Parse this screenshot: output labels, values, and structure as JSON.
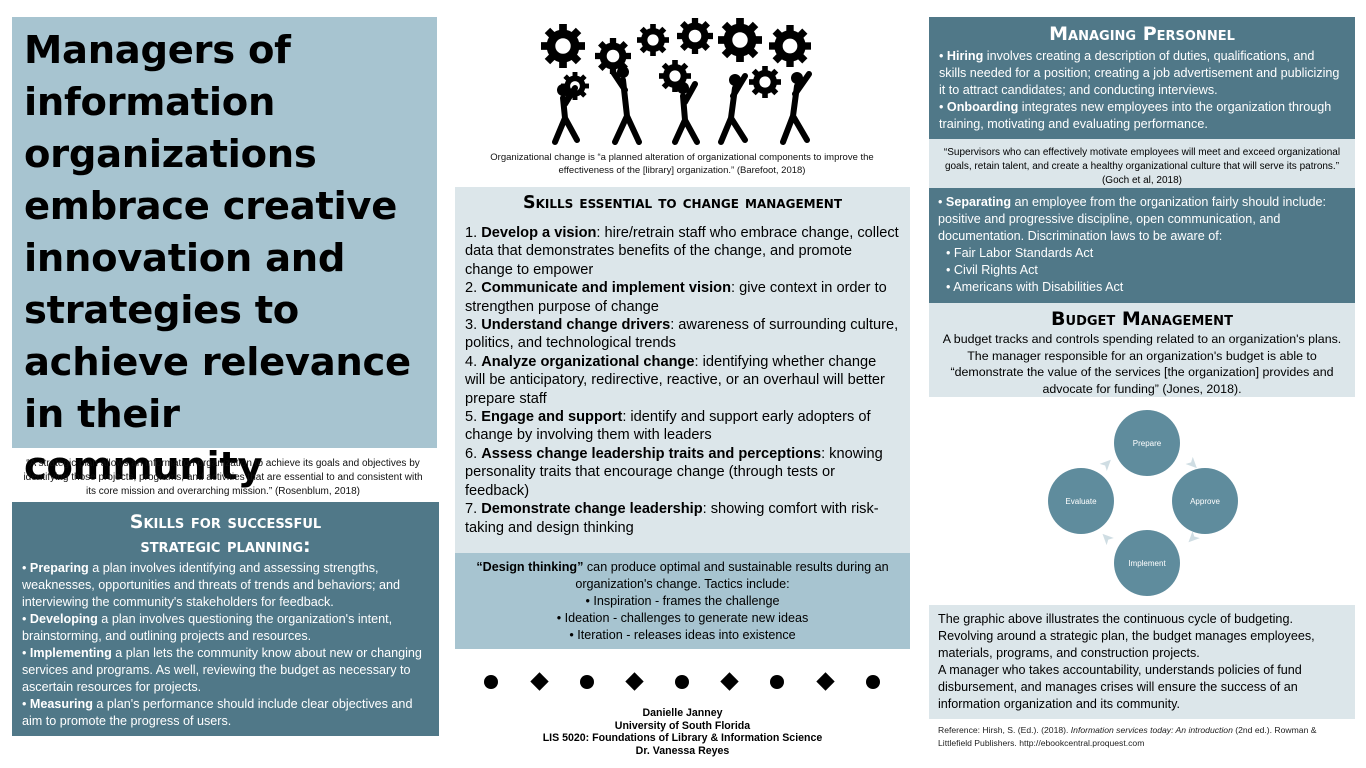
{
  "title": "Managers of information organizations embrace creative innovation and strategies to achieve relevance in their community",
  "strategic_quote": "“A strategic plan allows an information organization to achieve its goals and objectives by identifying those projects, programs, and activities that are essential to and consistent with its core mission and overarching mission.” (Rosenblum, 2018)",
  "strategic": {
    "heading_line1": "Skills for successful",
    "heading_line2": "strategic planning:",
    "items": [
      {
        "term": "Preparing",
        "text": " a plan involves identifying and assessing strengths, weaknesses, opportunities and threats of trends and behaviors; and interviewing the community's stakeholders for feedback."
      },
      {
        "term": "Developing",
        "text": " a plan involves questioning the organization's intent, brainstorming, and outlining projects and resources."
      },
      {
        "term": "Implementing",
        "text": " a plan lets the community know about new or changing services and programs. As well, reviewing the budget as necessary to ascertain resources for projects."
      },
      {
        "term": "Measuring",
        "text": " a plan's performance should include clear objectives and aim to promote the progress of users."
      }
    ]
  },
  "change_caption": "Organizational change is “a planned alteration of organizational components to improve the effectiveness of the [library] organization.” (Barefoot, 2018)",
  "change": {
    "heading": "Skills essential to change management",
    "items": [
      {
        "num": "1. ",
        "term": "Develop a vision",
        "text": ": hire/retrain staff who embrace change, collect data that demonstrates benefits of the change, and promote change to empower"
      },
      {
        "num": "2. ",
        "term": "Communicate and implement vision",
        "text": ": give context in order to strengthen purpose of change"
      },
      {
        "num": "3. ",
        "term": "Understand change drivers",
        "text": ": awareness of surrounding culture, politics, and technological trends"
      },
      {
        "num": "4. ",
        "term": "Analyze organizational change",
        "text": ": identifying whether change will be anticipatory, redirective, reactive, or an overhaul will better prepare staff"
      },
      {
        "num": "5. ",
        "term": "Engage and support",
        "text": ": identify and support early adopters of change by involving them with leaders"
      },
      {
        "num": "6. ",
        "term": "Assess change leadership traits and perceptions",
        "text": ": knowing personality traits that encourage change (through tests or feedback)"
      },
      {
        "num": "7. ",
        "term": "Demonstrate change leadership",
        "text": ": showing comfort with risk-taking and design thinking"
      }
    ]
  },
  "design": {
    "term": "“Design thinking”",
    "intro": " can produce optimal and sustainable results during an organization's change. Tactics include:",
    "tactics": [
      "• Inspiration - frames the challenge",
      "• Ideation - challenges to generate new ideas",
      "• Iteration - releases ideas into existence"
    ]
  },
  "credits": {
    "name": "Danielle Janney",
    "school": "University of South Florida",
    "course": "LIS 5020: Foundations of Library & Information Science",
    "instructor": "Dr. Vanessa Reyes"
  },
  "personnel": {
    "heading": "Managing Personnel",
    "hiring_term": "Hiring",
    "hiring_text": " involves creating a description of duties, qualifications, and skills needed for a position; creating a job advertisement and publicizing it to attract candidates; and conducting interviews.",
    "onboarding_term": "Onboarding",
    "onboarding_text": " integrates new employees into the organization through training, motivating and evaluating performance.",
    "quote": "“Supervisors who can effectively motivate employees will meet and exceed organizational goals, retain talent, and create a healthy organizational culture that will serve its patrons.” (Goch et al, 2018)",
    "separating_term": "Separating",
    "separating_text": " an employee from the organization fairly should include: positive and progressive discipline,  open communication, and documentation. Discrimination laws to be aware of:",
    "laws": [
      "Fair Labor Standards Act",
      "Civil Rights Act",
      "Americans with Disabilities Act"
    ]
  },
  "budget": {
    "heading": "Budget Management",
    "text": "A budget tracks and controls spending related to an organization's plans. The manager responsible for an organization's budget is able to “demonstrate the value of the services [the organization] provides and advocate for funding”  (Jones, 2018).",
    "cycle": [
      "Prepare",
      "Approve",
      "Implement",
      "Evaluate"
    ],
    "explain1": "The graphic above illustrates the continuous cycle of budgeting. Revolving around a strategic plan, the budget manages employees, materials, programs, and construction projects.",
    "explain2": "A manager who takes accountability, understands policies of fund disbursement, and manages crises will ensure the success of an information organization and its community."
  },
  "reference": {
    "prefix": "Reference: Hirsh, S. (Ed.). (2018). ",
    "title": "Information services today: An introduction",
    "suffix": " (2nd ed.). Rowman & Littlefield Publishers. http://ebookcentral.proquest.com"
  },
  "colors": {
    "dark": "#507888",
    "mid": "#a7c4d0",
    "light": "#dce6ea"
  }
}
